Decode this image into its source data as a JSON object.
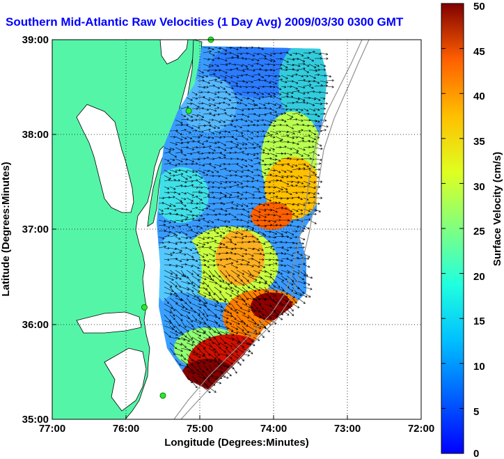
{
  "title": "Southern Mid-Atlantic Raw Velocities (1 Day Avg) 2009/03/30 0300 GMT",
  "map": {
    "xlabel": "Longitude (Degrees:Minutes)",
    "ylabel": "Latitude (Degrees:Minutes)",
    "lon_ticks": [
      "77:00",
      "76:00",
      "75:00",
      "74:00",
      "73:00",
      "72:00"
    ],
    "lat_ticks": [
      "39:00",
      "38:00",
      "37:00",
      "36:00",
      "35:00"
    ],
    "lon_range": [
      -77,
      -72
    ],
    "lat_range": [
      35,
      39
    ],
    "grid": true,
    "land_color": "#55f5a8",
    "water_color": "#ffffff"
  },
  "colorbar": {
    "label": "Surface Velocity (cm/s)",
    "ticks": [
      "0",
      "5",
      "10",
      "15",
      "20",
      "25",
      "30",
      "35",
      "40",
      "45",
      "50"
    ],
    "range": [
      0,
      50
    ],
    "colormap": "jet"
  },
  "stations": [
    {
      "lon": -74.85,
      "lat": 39.0
    },
    {
      "lon": -75.15,
      "lat": 38.25
    },
    {
      "lon": -75.75,
      "lat": 36.18
    },
    {
      "lon": -75.5,
      "lat": 35.25
    }
  ]
}
